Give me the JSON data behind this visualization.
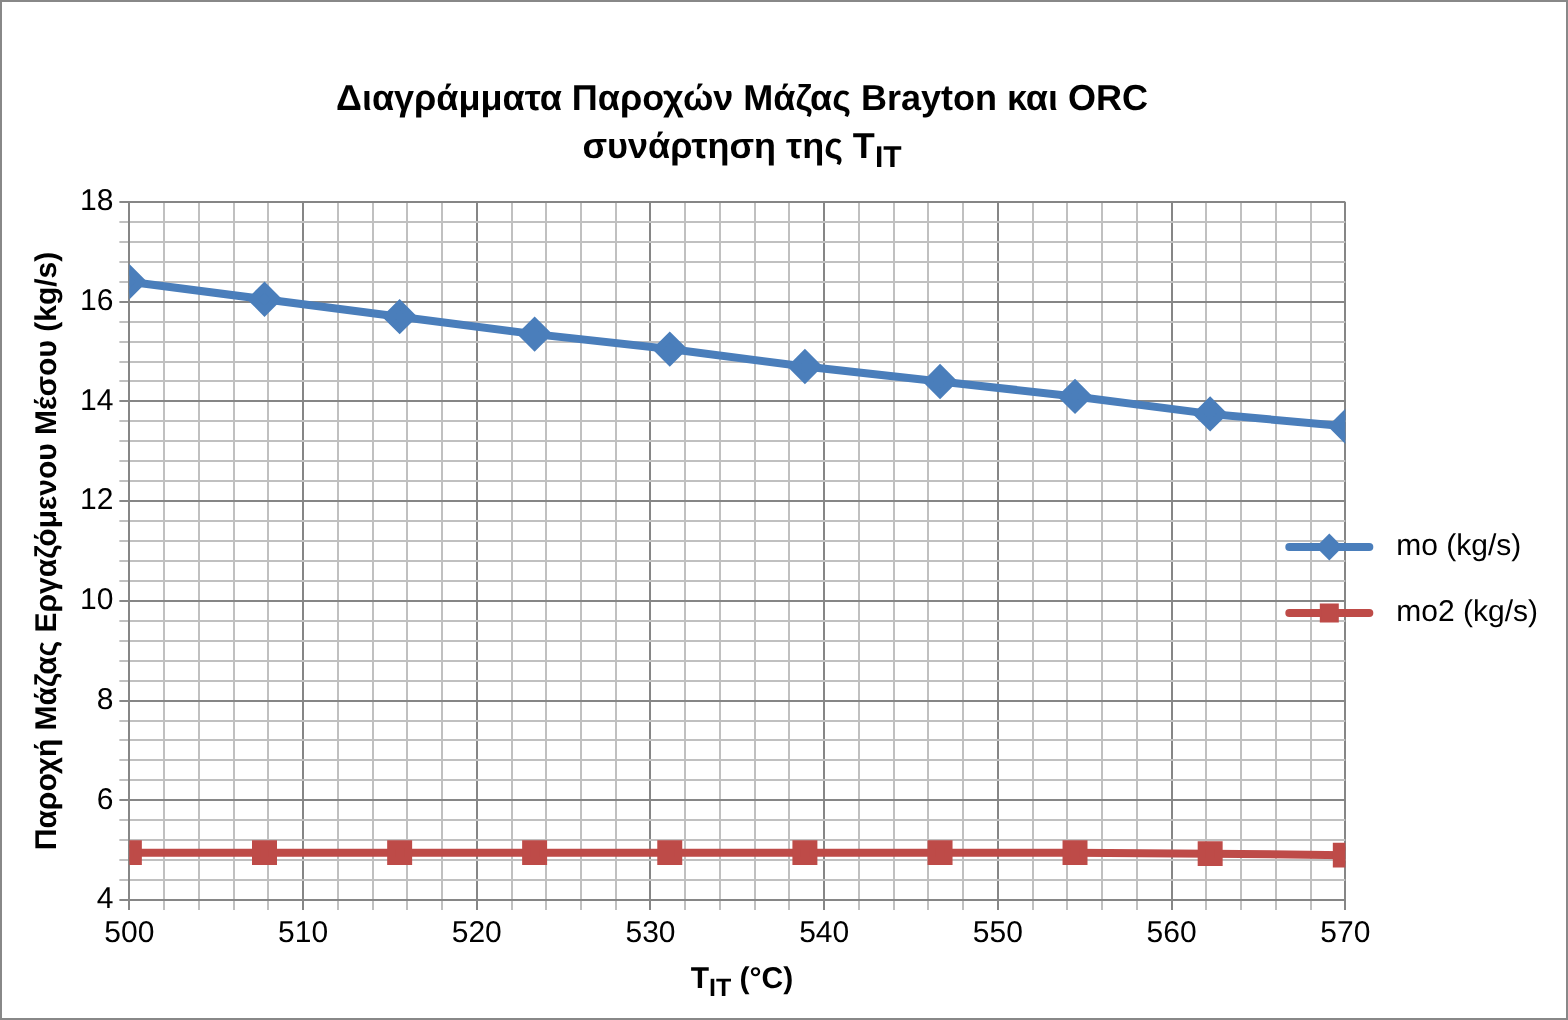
{
  "chart_data": {
    "type": "line",
    "title": "Διαγράμματα Παροχών Μάζας Brayton και ORC\nσυνάρτηση της T$_{IT}$",
    "xlabel": "T$_{IT}$ (°C)",
    "ylabel": "Παροχή Μάζας Εργαζόμενου Μέσου (kg/s)",
    "x": [
      500,
      507.78,
      515.56,
      523.33,
      531.11,
      538.89,
      546.67,
      554.44,
      562.22,
      570
    ],
    "series": [
      {
        "name": "mo (kg/s)",
        "color": "#4a7ebb",
        "marker": "diamond",
        "values": [
          16.4,
          16.05,
          15.7,
          15.35,
          15.05,
          14.7,
          14.4,
          14.1,
          13.75,
          13.5
        ]
      },
      {
        "name": "mo2 (kg/s)",
        "color": "#be4b48",
        "marker": "square",
        "values": [
          4.95,
          4.95,
          4.95,
          4.95,
          4.95,
          4.95,
          4.95,
          4.95,
          4.93,
          4.9
        ]
      }
    ],
    "xlim": [
      500,
      570
    ],
    "xticks": [
      500,
      {
        "value": 502,
        "label": null
      },
      {
        "value": 504,
        "label": null
      },
      {
        "value": 506,
        "label": null
      },
      {
        "value": 508,
        "label": null
      },
      510,
      {
        "value": 512,
        "label": null
      },
      {
        "value": 514,
        "label": null
      },
      {
        "value": 516,
        "label": null
      },
      {
        "value": 518,
        "label": null
      },
      520,
      {
        "value": 522,
        "label": null
      },
      {
        "value": 524,
        "label": null
      },
      {
        "value": 526,
        "label": null
      },
      {
        "value": 528,
        "label": null
      },
      530,
      {
        "value": 532,
        "label": null
      },
      {
        "value": 534,
        "label": null
      },
      {
        "value": 536,
        "label": null
      },
      {
        "value": 538,
        "label": null
      },
      540,
      {
        "value": 542,
        "label": null
      },
      {
        "value": 544,
        "label": null
      },
      {
        "value": 546,
        "label": null
      },
      {
        "value": 548,
        "label": null
      },
      550,
      {
        "value": 552,
        "label": null
      },
      {
        "value": 554,
        "label": null
      },
      {
        "value": 556,
        "label": null
      },
      {
        "value": 558,
        "label": null
      },
      560,
      {
        "value": 562,
        "label": null
      },
      {
        "value": 564,
        "label": null
      },
      {
        "value": 566,
        "label": null
      },
      {
        "value": 568,
        "label": null
      },
      570
    ],
    "ylim": [
      4,
      18
    ],
    "yticks": [
      4,
      {
        "value": 4.4,
        "label": null
      },
      {
        "value": 4.8,
        "label": null
      },
      {
        "value": 5.2,
        "label": null
      },
      {
        "value": 5.6,
        "label": null
      },
      6,
      {
        "value": 6.4,
        "label": null
      },
      {
        "value": 6.8,
        "label": null
      },
      {
        "value": 7.2,
        "label": null
      },
      {
        "value": 7.6,
        "label": null
      },
      8,
      {
        "value": 8.4,
        "label": null
      },
      {
        "value": 8.8,
        "label": null
      },
      {
        "value": 9.2,
        "label": null
      },
      {
        "value": 9.6,
        "label": null
      },
      10,
      {
        "value": 10.4,
        "label": null
      },
      {
        "value": 10.8,
        "label": null
      },
      {
        "value": 11.2,
        "label": null
      },
      {
        "value": 11.6,
        "label": null
      },
      12,
      {
        "value": 12.4,
        "label": null
      },
      {
        "value": 12.8,
        "label": null
      },
      {
        "value": 13.2,
        "label": null
      },
      {
        "value": 13.6,
        "label": null
      },
      14,
      {
        "value": 14.4,
        "label": null
      },
      {
        "value": 14.8,
        "label": null
      },
      {
        "value": 15.2,
        "label": null
      },
      {
        "value": 15.6,
        "label": null
      },
      16,
      {
        "value": 16.4,
        "label": null
      },
      {
        "value": 16.8,
        "label": null
      },
      {
        "value": 17.2,
        "label": null
      },
      {
        "value": 17.6,
        "label": null
      },
      18
    ],
    "grid": true,
    "legend": "right",
    "line_style": "solid"
  }
}
